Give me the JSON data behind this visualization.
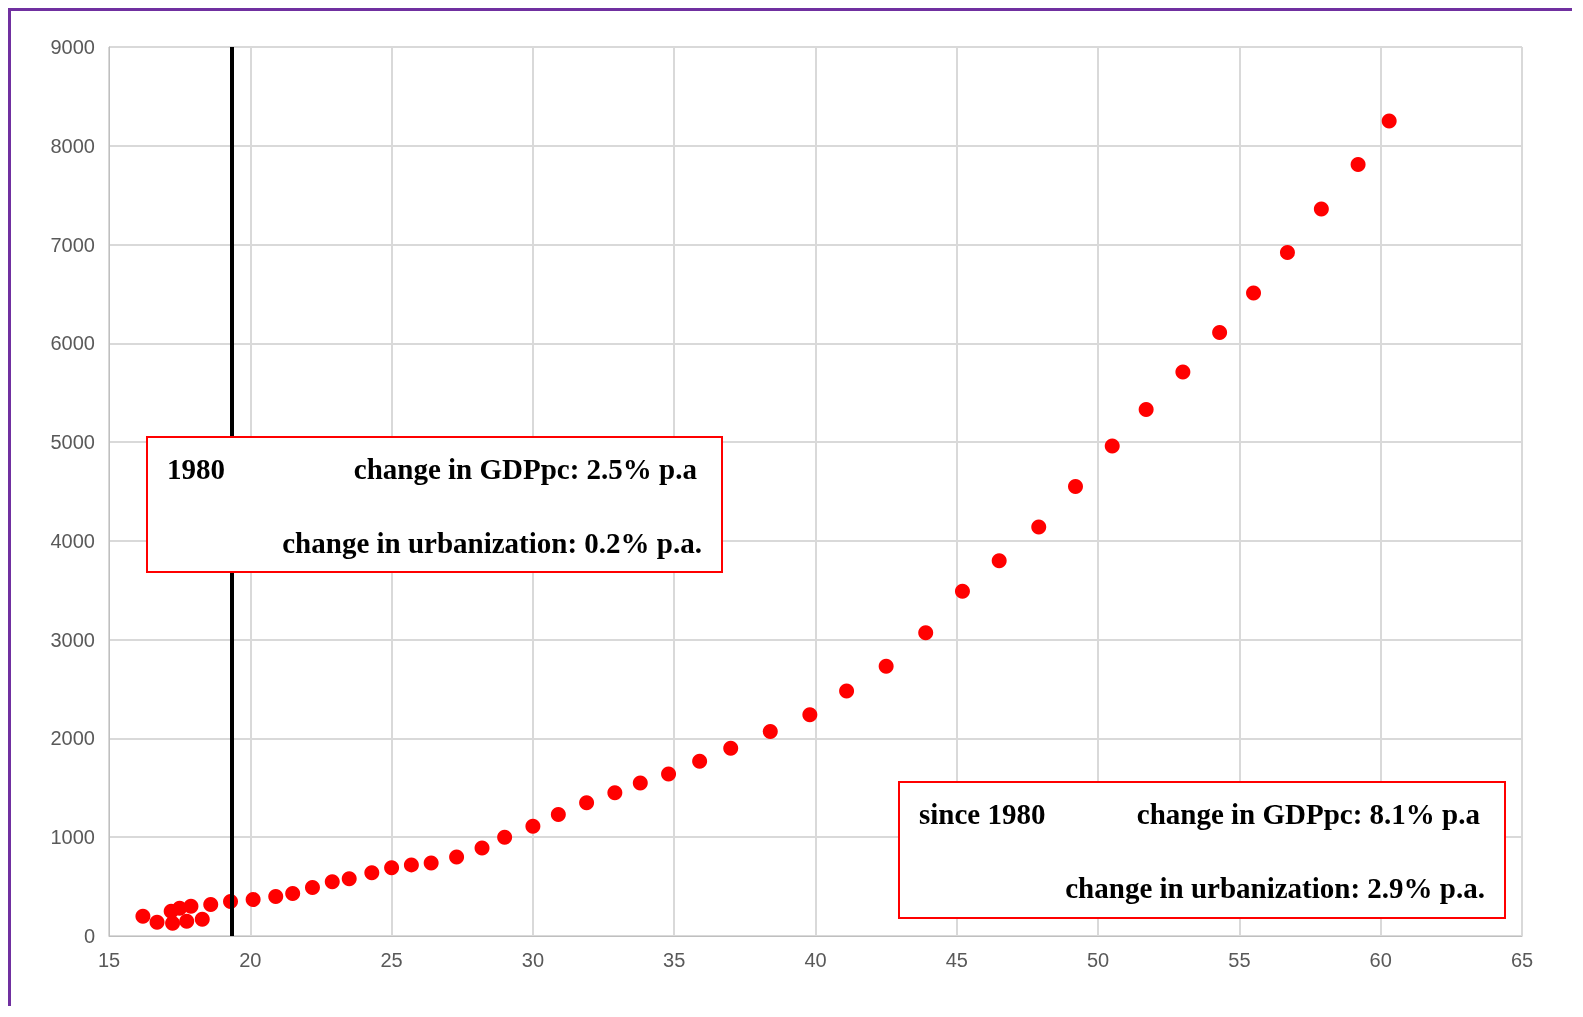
{
  "chart_data": {
    "type": "scatter",
    "marker": "circle",
    "grid": true,
    "xlim": [
      15,
      65
    ],
    "xticks": [
      15,
      20,
      25,
      30,
      35,
      40,
      45,
      50,
      55,
      60,
      65
    ],
    "ylim": [
      0,
      9000
    ],
    "yticks": [
      0,
      1000,
      2000,
      3000,
      4000,
      5000,
      6000,
      7000,
      8000,
      9000
    ],
    "series": [
      {
        "color": "#ff0000",
        "x": [
          16.2,
          16.7,
          17.2,
          17.25,
          17.5,
          17.75,
          17.9,
          18.3,
          18.6,
          19.3,
          20.1,
          20.9,
          21.5,
          22.2,
          22.9,
          23.5,
          24.3,
          25.0,
          25.7,
          26.4,
          27.3,
          28.2,
          29.0,
          30.0,
          30.9,
          31.9,
          32.9,
          33.8,
          34.8,
          35.9,
          37.0,
          38.4,
          39.8,
          41.1,
          42.5,
          43.9,
          45.2,
          46.5,
          47.9,
          49.2,
          50.5,
          51.7,
          53.0,
          54.3,
          55.5,
          56.7,
          57.9,
          59.2,
          60.3
        ],
        "values": [
          200,
          140,
          250,
          130,
          280,
          150,
          300,
          170,
          320,
          350,
          370,
          400,
          430,
          490,
          550,
          580,
          640,
          690,
          720,
          740,
          800,
          890,
          1000,
          1110,
          1230,
          1350,
          1450,
          1550,
          1640,
          1770,
          1900,
          2070,
          2240,
          2480,
          2730,
          3070,
          3490,
          3800,
          4140,
          4550,
          4960,
          5330,
          5710,
          6110,
          6510,
          6920,
          7360,
          7810,
          8250
        ]
      }
    ],
    "ref_lines": [
      {
        "axis": "x",
        "value": 19.35,
        "color": "#000000",
        "line_style": "solid"
      }
    ],
    "annotations": [
      "1980",
      "change in GDPpc: 2.5% p.a",
      "change in urbanization: 0.2% p.a.",
      "since 1980",
      "change in GDPpc: 8.1% p.a",
      "change in urbanization: 2.9% p.a."
    ]
  }
}
